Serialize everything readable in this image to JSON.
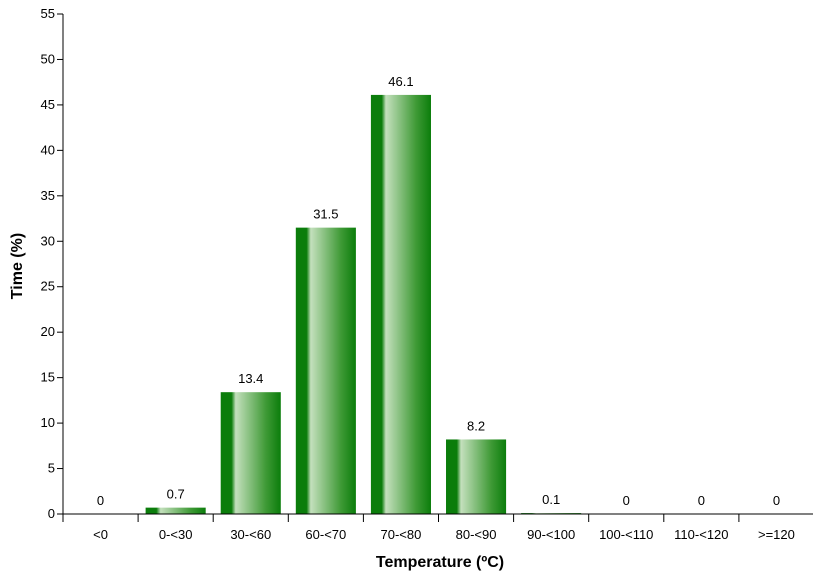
{
  "chart_data": {
    "type": "bar",
    "title": "",
    "xlabel": "Temperature (ºC)",
    "ylabel": "Time (%)",
    "ylim": [
      0,
      55
    ],
    "yticks": [
      "0",
      "5",
      "10",
      "15",
      "20",
      "25",
      "30",
      "35",
      "40",
      "45",
      "50",
      "55"
    ],
    "categories": [
      "<0",
      "0-<30",
      "30-<60",
      "60-<70",
      "70-<80",
      "80-<90",
      "90-<100",
      "100-<110",
      "110-<120",
      ">=120"
    ],
    "values": [
      0,
      0.7,
      13.4,
      31.5,
      46.1,
      8.2,
      0.1,
      0,
      0,
      0
    ],
    "value_labels": [
      "0",
      "0.7",
      "13.4",
      "31.5",
      "46.1",
      "8.2",
      "0.1",
      "0",
      "0",
      "0"
    ],
    "grid": false,
    "legend": "none",
    "colors": {
      "bar_dark": "#0b7d0b",
      "bar_light": "#c4e0bd",
      "axis": "#000000"
    }
  }
}
